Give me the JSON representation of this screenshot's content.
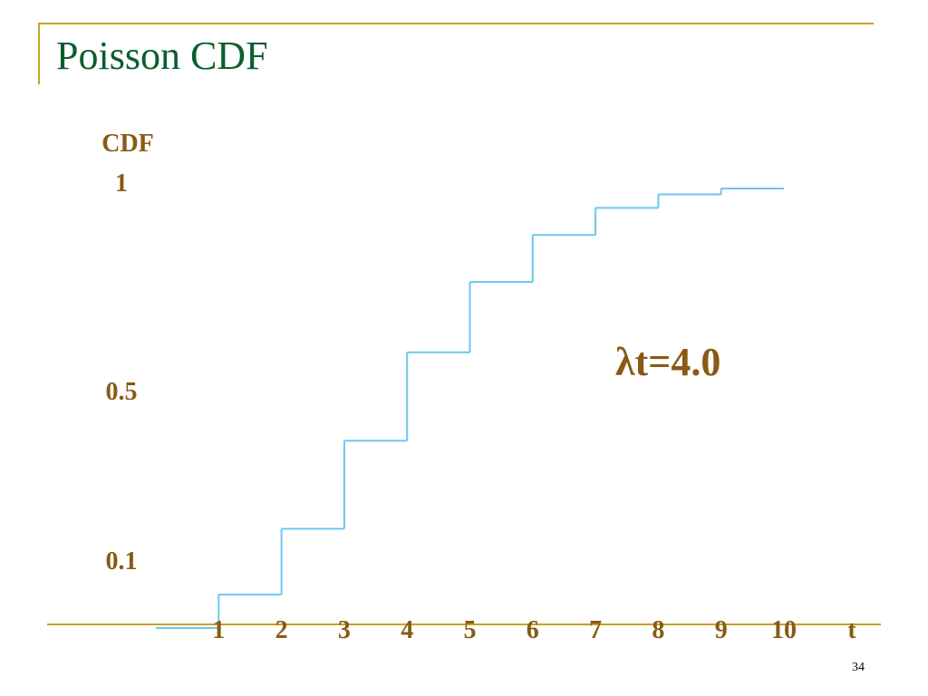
{
  "slide": {
    "title": "Poisson CDF",
    "number": "34"
  },
  "colors": {
    "title": "#0a5e2e",
    "frame": "#c9a227",
    "text": "#8a5a14",
    "step_line": "#6ec6f0",
    "axis": "#c9a227"
  },
  "chart_data": {
    "type": "line",
    "step": true,
    "ylabel": "CDF",
    "xlabel": "t",
    "annotation": "λt=4.0",
    "y_ticks": [
      {
        "value": 1,
        "label": "1"
      },
      {
        "value": 0.5,
        "label": "0.5"
      },
      {
        "value": 0.1,
        "label": "0.1"
      }
    ],
    "x_ticks": [
      "1",
      "2",
      "3",
      "4",
      "5",
      "6",
      "7",
      "8",
      "9",
      "10"
    ],
    "xlim": [
      0,
      10
    ],
    "ylim": [
      0,
      1
    ],
    "x": [
      0,
      1,
      2,
      3,
      4,
      5,
      6,
      7,
      8,
      9
    ],
    "values": [
      0.018,
      0.092,
      0.238,
      0.433,
      0.629,
      0.785,
      0.889,
      0.949,
      0.979,
      0.992
    ],
    "grid": false
  }
}
